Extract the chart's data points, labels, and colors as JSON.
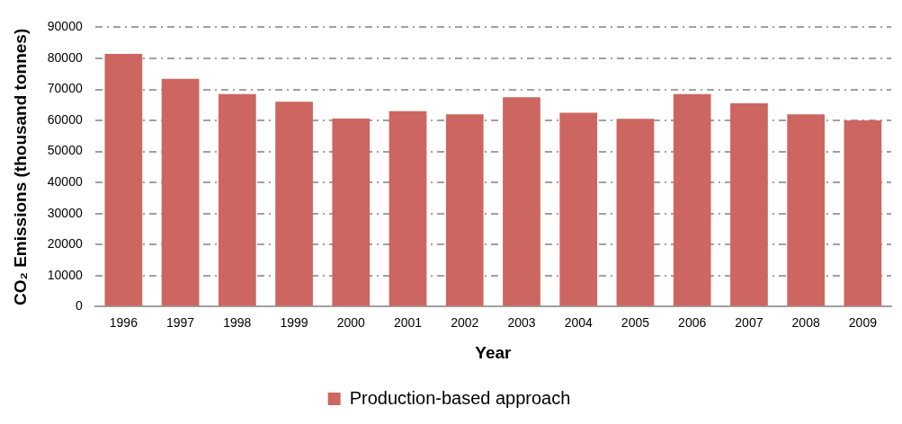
{
  "chart_data": {
    "type": "bar",
    "xlabel": "Year",
    "ylabel": "CO₂ Emissions (thousand tonnes)",
    "categories": [
      "1996",
      "1997",
      "1998",
      "1999",
      "2000",
      "2001",
      "2002",
      "2003",
      "2004",
      "2005",
      "2006",
      "2007",
      "2008",
      "2009"
    ],
    "series": [
      {
        "name": "Production-based approach",
        "color": "#cd6660",
        "values": [
          81400,
          73400,
          68500,
          66000,
          60600,
          63000,
          62000,
          67500,
          62500,
          60500,
          68500,
          65500,
          62000,
          60000
        ]
      }
    ],
    "ylim": [
      0,
      90000
    ],
    "yticks": [
      0,
      10000,
      20000,
      30000,
      40000,
      50000,
      60000,
      70000,
      80000,
      90000
    ],
    "grid": "y",
    "legend": "bottom"
  }
}
